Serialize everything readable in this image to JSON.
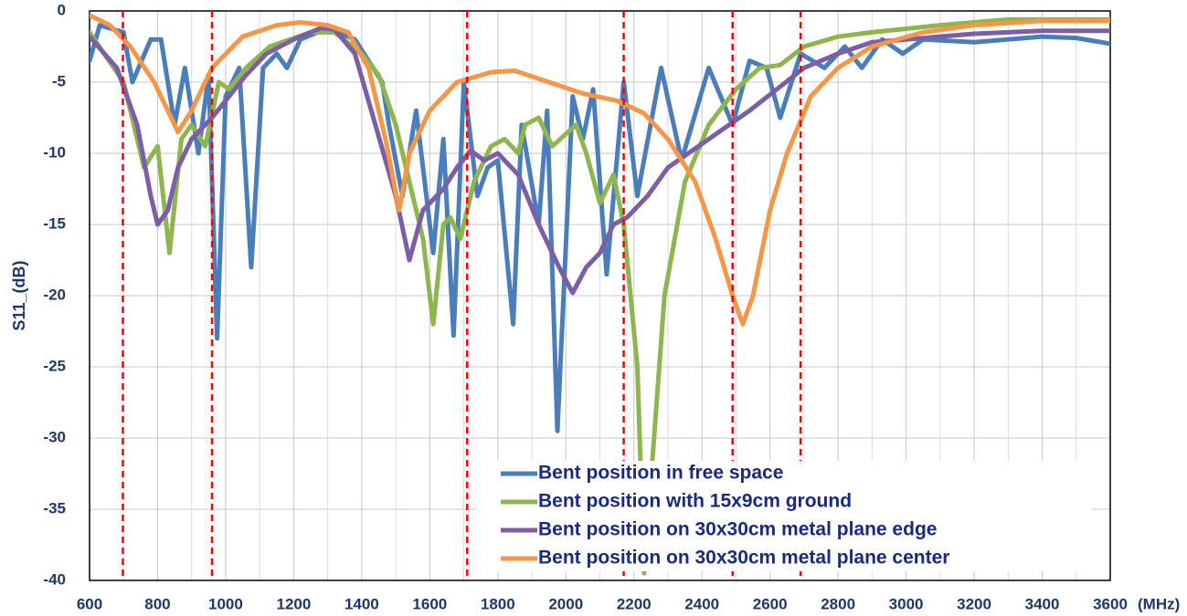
{
  "chart_data": {
    "type": "line",
    "y_label": "S11_(dB)",
    "x_label": "(MHz)",
    "xlim": [
      600,
      3600
    ],
    "xticks": [
      600,
      800,
      1000,
      1200,
      1400,
      1600,
      1800,
      2000,
      2200,
      2400,
      2600,
      2800,
      3000,
      3200,
      3400,
      3600
    ],
    "ylim": [
      -40,
      0
    ],
    "yticks": [
      0,
      -5,
      -10,
      -15,
      -20,
      -25,
      -30,
      -35,
      -40
    ],
    "grid": true,
    "legend": "lower right",
    "reference_lines": {
      "x": [
        698,
        960,
        1710,
        2170,
        2490,
        2690
      ],
      "color": "#ff0000"
    },
    "series": [
      {
        "name": "Bent position in free space",
        "color": "#4a7ebb",
        "x": [
          600,
          630,
          700,
          726,
          780,
          810,
          850,
          880,
          920,
          950,
          975,
          1000,
          1040,
          1075,
          1110,
          1150,
          1180,
          1220,
          1300,
          1380,
          1460,
          1480,
          1520,
          1560,
          1610,
          1640,
          1670,
          1700,
          1740,
          1770,
          1800,
          1845,
          1870,
          1920,
          1945,
          1975,
          2020,
          2050,
          2080,
          2120,
          2170,
          2210,
          2280,
          2340,
          2420,
          2490,
          2540,
          2590,
          2630,
          2690,
          2760,
          2820,
          2870,
          2930,
          2990,
          3050,
          3200,
          3400,
          3500,
          3600
        ],
        "values": [
          -3.5,
          -1,
          -1.5,
          -5,
          -2,
          -2,
          -8,
          -4,
          -10,
          -4.5,
          -23,
          -6,
          -4,
          -18,
          -4,
          -3,
          -4,
          -2,
          -1.2,
          -2,
          -5,
          -8,
          -13,
          -7,
          -17,
          -9,
          -22.8,
          -5,
          -13,
          -11,
          -10.5,
          -22,
          -8,
          -15,
          -7,
          -29.5,
          -6,
          -9,
          -5.5,
          -18.5,
          -5,
          -13,
          -4,
          -10.5,
          -4,
          -8,
          -3.5,
          -4,
          -7.5,
          -3,
          -4,
          -2.5,
          -4,
          -2,
          -3,
          -2,
          -2.2,
          -1.8,
          -1.9,
          -2.3
        ]
      },
      {
        "name": "Bent position with 15x9cm ground",
        "color": "#8db64f",
        "x": [
          600,
          700,
          760,
          800,
          835,
          870,
          900,
          940,
          980,
          1010,
          1060,
          1130,
          1250,
          1320,
          1400,
          1450,
          1500,
          1540,
          1580,
          1610,
          1640,
          1660,
          1690,
          1730,
          1780,
          1820,
          1860,
          1880,
          1920,
          1960,
          2030,
          2060,
          2100,
          2140,
          2170,
          2210,
          2230,
          2290,
          2350,
          2420,
          2500,
          2570,
          2630,
          2700,
          2800,
          2900,
          3100,
          3300,
          3600
        ],
        "values": [
          -1.5,
          -5,
          -11,
          -9.5,
          -17,
          -9,
          -8,
          -9.5,
          -5,
          -5.5,
          -4,
          -2.5,
          -1.5,
          -1.5,
          -3,
          -4.5,
          -8,
          -12,
          -16,
          -22,
          -15,
          -14.5,
          -16,
          -12,
          -9.5,
          -9,
          -10,
          -8,
          -7.5,
          -9.5,
          -8,
          -10,
          -13.5,
          -11.5,
          -15,
          -25,
          -39.5,
          -20,
          -12,
          -8,
          -5.5,
          -4,
          -3.8,
          -2.5,
          -1.8,
          -1.5,
          -1,
          -0.6,
          -0.6
        ]
      },
      {
        "name": "Bent position on 30x30cm metal plane edge",
        "color": "#7b5ea7",
        "x": [
          600,
          680,
          740,
          780,
          800,
          830,
          860,
          900,
          960,
          1060,
          1120,
          1200,
          1280,
          1320,
          1380,
          1440,
          1500,
          1540,
          1580,
          1640,
          1680,
          1720,
          1760,
          1800,
          1860,
          1920,
          1980,
          2020,
          2060,
          2100,
          2140,
          2180,
          2240,
          2300,
          2360,
          2420,
          2480,
          2540,
          2620,
          2700,
          2800,
          2900,
          3000,
          3200,
          3400,
          3600
        ],
        "values": [
          -1.8,
          -4,
          -8,
          -13,
          -15,
          -14,
          -11,
          -9,
          -7.5,
          -4.5,
          -3,
          -2,
          -1.2,
          -1.3,
          -3,
          -8,
          -13,
          -17.5,
          -14,
          -12.5,
          -11,
          -9.8,
          -10.5,
          -10,
          -11.5,
          -15,
          -18,
          -19.8,
          -18,
          -17,
          -15,
          -14.5,
          -13,
          -11,
          -10,
          -9,
          -8,
          -7,
          -5.5,
          -4,
          -3,
          -2.2,
          -2,
          -1.6,
          -1.4,
          -1.4
        ]
      },
      {
        "name": "Bent position on 30x30cm metal plane center",
        "color": "#f79646",
        "x": [
          600,
          660,
          720,
          790,
          860,
          900,
          960,
          1050,
          1150,
          1220,
          1300,
          1360,
          1420,
          1470,
          1510,
          1540,
          1600,
          1680,
          1780,
          1850,
          1950,
          2050,
          2150,
          2230,
          2300,
          2380,
          2440,
          2490,
          2520,
          2550,
          2600,
          2650,
          2720,
          2800,
          2900,
          3050,
          3200,
          3400,
          3600
        ],
        "values": [
          -0.3,
          -1,
          -2.5,
          -5,
          -8.5,
          -7,
          -4,
          -1.8,
          -1,
          -0.8,
          -1,
          -1.5,
          -4,
          -9,
          -14,
          -10,
          -7,
          -5,
          -4.3,
          -4.2,
          -5,
          -5.8,
          -6.3,
          -7.2,
          -9,
          -12,
          -16,
          -20,
          -22,
          -20,
          -14,
          -10,
          -6,
          -4,
          -2.5,
          -1.5,
          -1,
          -0.7,
          -0.7
        ]
      }
    ]
  }
}
